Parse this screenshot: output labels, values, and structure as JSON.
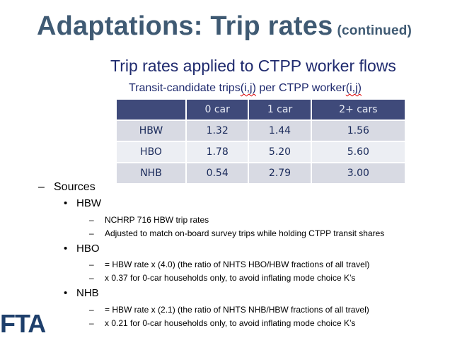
{
  "title": {
    "main": "Adaptations: Trip rates",
    "suffix": "(continued)"
  },
  "subtitle": "Trip rates applied to CTPP worker flows",
  "caption": {
    "before": "Transit-candidate trips",
    "ij1": "(i,j)",
    "middle": " per CTPP worker",
    "ij2": "(i,j)"
  },
  "table": {
    "headers": [
      "",
      "0 car",
      "1 car",
      "2+ cars"
    ],
    "rows": [
      [
        "HBW",
        "1.32",
        "1.44",
        "1.56"
      ],
      [
        "HBO",
        "1.78",
        "5.20",
        "5.60"
      ],
      [
        "NHB",
        "0.54",
        "2.79",
        "3.00"
      ]
    ]
  },
  "sources": {
    "heading": "Sources",
    "bullet_dash": "–",
    "bullet_dot": "•",
    "groups": [
      {
        "label": "HBW",
        "items": [
          "NCHRP 716 HBW trip rates",
          "Adjusted to match on-board survey trips while holding CTPP transit shares"
        ]
      },
      {
        "label": "HBO",
        "items": [
          "= HBW rate x (4.0) (the ratio of NHTS HBO/HBW fractions of all travel)",
          "x 0.37 for 0-car households only, to avoid inflating mode choice K’s"
        ]
      },
      {
        "label": "NHB",
        "items": [
          "= HBW rate x (2.1) (the ratio of NHTS NHB/HBW fractions of all travel)",
          "x 0.21 for 0-car households only, to avoid inflating mode choice K’s"
        ]
      }
    ]
  },
  "logo": "FTA"
}
